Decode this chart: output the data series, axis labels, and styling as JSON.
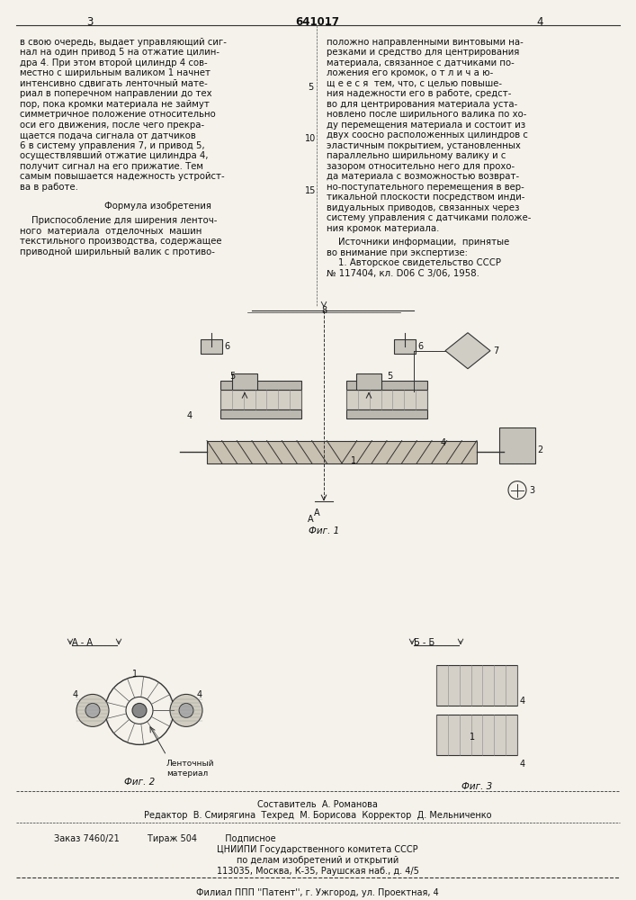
{
  "bg_color": "#e8e4dc",
  "page_color": "#f5f2eb",
  "text_color": "#1a1a1a",
  "patent_number": "641017",
  "page_left": "3",
  "page_right": "4",
  "col1_text": [
    "в свою очередь, выдает управляющий сиг-",
    "нал на один привод 5 на отжатие цилин-",
    "дра 4. При этом второй цилиндр 4 сов-",
    "местно с ширильным валиком 1 начнет",
    "интенсивно сдвигать ленточный мате-",
    "риал в поперечном направлении до тех",
    "пор, пока кромки материала не займут",
    "симметричное положение относительно",
    "оси его движения, после чего прекра-",
    "щается подача сигнала от датчиков",
    "6 в систему управления 7, и привод 5,",
    "осуществлявший отжатие цилиндра 4,",
    "получит сигнал на его прижатие. Тем",
    "самым повышается надежность устройст-",
    "ва в работе."
  ],
  "formula_title": "Формула изобретения",
  "formula_text": [
    "    Приспособление для ширения ленточ-",
    "ного  материала  отделочных  машин",
    "текстильного производства, содержащее",
    "приводной ширильный валик с противо-"
  ],
  "col2_text_top": [
    "положно направленными винтовыми на-",
    "резками и средство для центрирования",
    "материала, связанное с датчиками по-",
    "ложения его кромок, о т л и ч а ю-",
    "щ е е с я  тем, что, с целью повыше-",
    "ния надежности его в работе, средст-",
    "во для центрирования материала уста-",
    "новлено после ширильного валика по хо-",
    "ду перемещения материала и состоит из",
    "двух соосно расположенных цилиндров с",
    "эластичным покрытием, установленных",
    "параллельно ширильному валику и с",
    "зазором относительно него для прохо-",
    "да материала с возможностью возврат-",
    "но-поступательного перемещения в вер-",
    "тикальной плоскости посредством инди-",
    "видуальных приводов, связанных через",
    "систему управления с датчиками положе-",
    "ния кромок материала."
  ],
  "sources_title": "    Источники информации,  принятые",
  "sources_text": [
    "во внимание при экспертизе:",
    "    1. Авторское свидетельство СССР",
    "№ 117404, кл. D06 C 3/06, 1958."
  ],
  "line_numbers": [
    "5",
    "10",
    "15"
  ],
  "fig1_label": "Фиг. 1",
  "fig2_label": "Фиг. 2",
  "fig3_label": "Фиг. 3",
  "cut_aa": "А - А",
  "cut_bb": "Б - Б",
  "band_label": "Ленточный\nматериал",
  "footer_line1": "Составитель  А. Романова",
  "footer_line2": "Редактор  В. Смирягина  Техред  М. Борисова  Корректор  Д. Мельниченко",
  "footer_line3": "Заказ 7460/21          Тираж 504          Подписное",
  "footer_line4": "ЦНИИПИ Государственного комитета СССР",
  "footer_line5": "по делам изобретений и открытий",
  "footer_line6": "113035, Москва, К-35, Раушская наб., д. 4/5",
  "footer_line7": "Филиал ППП ''Патент'', г. Ужгород, ул. Проектная, 4"
}
